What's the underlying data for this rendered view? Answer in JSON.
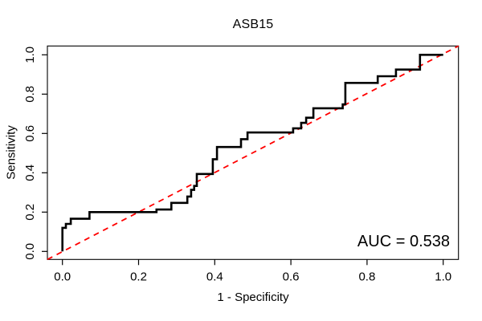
{
  "title": "ASB15",
  "annotation": {
    "auc_label": "AUC = 0.538"
  },
  "colors": {
    "curve": "#000000",
    "diagonal": "#ff0000",
    "axis": "#000000",
    "text": "#000000",
    "background": "#ffffff"
  },
  "chart_data": {
    "type": "line",
    "subtype": "roc-step-curve",
    "title": "ASB15",
    "xlabel": "1 - Specificity",
    "ylabel": "Sensitivity",
    "xlim": [
      0,
      1
    ],
    "ylim": [
      0,
      1
    ],
    "grid": false,
    "x_ticks": [
      0.0,
      0.2,
      0.4,
      0.6,
      0.8,
      1.0
    ],
    "y_ticks": [
      0.0,
      0.2,
      0.4,
      0.6,
      0.8,
      1.0
    ],
    "x_tick_labels": [
      "0.0",
      "0.2",
      "0.4",
      "0.6",
      "0.8",
      "1.0"
    ],
    "y_tick_labels": [
      "0.0",
      "0.2",
      "0.4",
      "0.6",
      "0.8",
      "1.0"
    ],
    "auc": 0.538,
    "series": [
      {
        "name": "ROC curve",
        "style": "solid",
        "color": "#000000",
        "points": [
          [
            0.0,
            0.0
          ],
          [
            0.0,
            0.12
          ],
          [
            0.009,
            0.12
          ],
          [
            0.009,
            0.14
          ],
          [
            0.022,
            0.14
          ],
          [
            0.022,
            0.166
          ],
          [
            0.071,
            0.166
          ],
          [
            0.071,
            0.2
          ],
          [
            0.247,
            0.2
          ],
          [
            0.247,
            0.213
          ],
          [
            0.286,
            0.213
          ],
          [
            0.286,
            0.247
          ],
          [
            0.328,
            0.247
          ],
          [
            0.328,
            0.279
          ],
          [
            0.338,
            0.279
          ],
          [
            0.338,
            0.313
          ],
          [
            0.346,
            0.313
          ],
          [
            0.346,
            0.333
          ],
          [
            0.353,
            0.333
          ],
          [
            0.353,
            0.394
          ],
          [
            0.395,
            0.394
          ],
          [
            0.395,
            0.469
          ],
          [
            0.406,
            0.469
          ],
          [
            0.406,
            0.531
          ],
          [
            0.469,
            0.531
          ],
          [
            0.469,
            0.571
          ],
          [
            0.486,
            0.571
          ],
          [
            0.486,
            0.605
          ],
          [
            0.606,
            0.605
          ],
          [
            0.606,
            0.626
          ],
          [
            0.627,
            0.626
          ],
          [
            0.627,
            0.654
          ],
          [
            0.64,
            0.654
          ],
          [
            0.64,
            0.68
          ],
          [
            0.659,
            0.68
          ],
          [
            0.659,
            0.728
          ],
          [
            0.736,
            0.728
          ],
          [
            0.736,
            0.748
          ],
          [
            0.743,
            0.748
          ],
          [
            0.743,
            0.857
          ],
          [
            0.828,
            0.857
          ],
          [
            0.828,
            0.891
          ],
          [
            0.876,
            0.891
          ],
          [
            0.876,
            0.925
          ],
          [
            0.939,
            0.925
          ],
          [
            0.939,
            1.0
          ],
          [
            1.0,
            1.0
          ]
        ]
      },
      {
        "name": "chance diagonal",
        "style": "dashed",
        "color": "#ff0000",
        "points": [
          [
            0,
            0
          ],
          [
            1,
            1
          ]
        ]
      }
    ]
  }
}
